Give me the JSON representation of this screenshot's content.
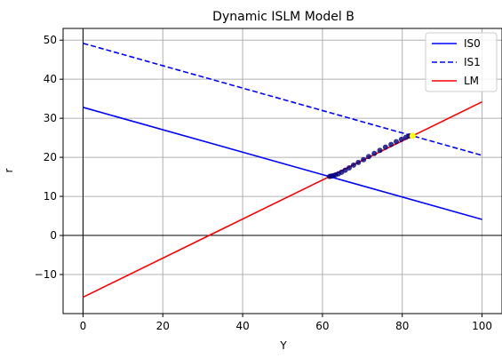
{
  "chart_data": {
    "type": "line",
    "title": "Dynamic ISLM Model B",
    "xlabel": "Y",
    "ylabel": "r",
    "xlim": [
      -5,
      105
    ],
    "ylim": [
      -20,
      53
    ],
    "xticks": [
      0,
      20,
      40,
      60,
      80,
      100
    ],
    "yticks": [
      -10,
      0,
      10,
      20,
      30,
      40,
      50
    ],
    "xtick_labels": [
      "0",
      "20",
      "40",
      "60",
      "80",
      "100"
    ],
    "ytick_labels": [
      "−10",
      "0",
      "10",
      "20",
      "30",
      "40",
      "50"
    ],
    "grid": true,
    "legend_position": "top-right",
    "series": [
      {
        "name": "IS0",
        "style": "solid",
        "color": "#0000ff",
        "x": [
          0,
          100
        ],
        "y": [
          32.8,
          4.1
        ]
      },
      {
        "name": "IS1",
        "style": "dashed",
        "color": "#0000ff",
        "x": [
          0,
          100
        ],
        "y": [
          49.2,
          20.5
        ]
      },
      {
        "name": "LM",
        "style": "solid",
        "color": "#ff0000",
        "x": [
          0,
          100
        ],
        "y": [
          -15.8,
          34.2
        ]
      }
    ],
    "path_points": {
      "color": "#000080",
      "x": [
        61.8,
        62.2,
        62.7,
        63.3,
        64.0,
        64.8,
        65.7,
        66.7,
        67.8,
        69.0,
        70.3,
        71.6,
        73.0,
        74.4,
        75.8,
        77.2,
        78.5,
        79.8,
        80.9,
        81.8
      ],
      "y": [
        15.1,
        15.2,
        15.3,
        15.5,
        15.8,
        16.2,
        16.7,
        17.3,
        18.0,
        18.7,
        19.4,
        20.2,
        21.0,
        21.8,
        22.6,
        23.3,
        24.0,
        24.6,
        25.1,
        25.5
      ]
    },
    "end_point": {
      "x": 82.6,
      "y": 25.5,
      "color": "#ffff00"
    }
  }
}
